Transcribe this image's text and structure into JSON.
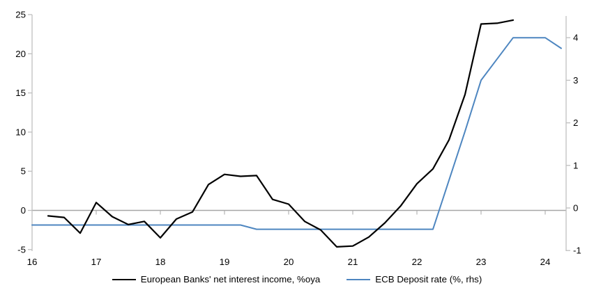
{
  "chart_data": {
    "type": "line",
    "title": "",
    "x_axis": {
      "tick_labels": [
        "16",
        "17",
        "18",
        "19",
        "20",
        "21",
        "22",
        "23",
        "24"
      ],
      "tick_values": [
        16,
        17,
        18,
        19,
        20,
        21,
        22,
        23,
        24
      ],
      "range": [
        16,
        24.34
      ]
    },
    "left_axis": {
      "tick_labels": [
        "25",
        "20",
        "15",
        "10",
        "5",
        "0",
        "-5"
      ],
      "tick_values": [
        25,
        20,
        15,
        10,
        5,
        0,
        -5
      ],
      "range": [
        -5,
        25
      ]
    },
    "right_axis": {
      "tick_labels": [
        "4",
        "3",
        "2",
        "1",
        "0",
        "-1"
      ],
      "tick_values": [
        4,
        3,
        2,
        1,
        0,
        -1
      ],
      "range": [
        -1,
        4.5
      ]
    },
    "grid": false,
    "zero_line": true,
    "legend_position": "bottom-center",
    "colors": {
      "axis_line": "#bfbfbf",
      "zero_line": "#a6a6a6",
      "tick_text": "#000000",
      "background": "#ffffff"
    },
    "series": [
      {
        "name": "European Banks' net interest income, %oya",
        "axis": "left",
        "color": "#000000",
        "width": 2.2,
        "x": [
          16.25,
          16.5,
          16.75,
          17.0,
          17.25,
          17.5,
          17.75,
          18.0,
          18.25,
          18.5,
          18.75,
          19.0,
          19.25,
          19.5,
          19.75,
          20.0,
          20.25,
          20.5,
          20.75,
          21.0,
          21.25,
          21.5,
          21.75,
          22.0,
          22.25,
          22.5,
          22.75,
          23.0,
          23.25,
          23.5
        ],
        "values": [
          -0.7,
          -0.9,
          -2.9,
          1.0,
          -0.8,
          -1.8,
          -1.4,
          -3.5,
          -1.1,
          -0.2,
          3.3,
          4.6,
          4.35,
          4.45,
          1.4,
          0.8,
          -1.4,
          -2.5,
          -4.65,
          -4.55,
          -3.4,
          -1.6,
          0.6,
          3.4,
          5.3,
          9.0,
          14.8,
          23.8,
          23.9,
          24.3
        ]
      },
      {
        "name": "ECB Deposit rate (%, rhs)",
        "axis": "right",
        "color": "#4e86c0",
        "width": 2.0,
        "x": [
          16.0,
          16.25,
          16.5,
          16.75,
          17.0,
          17.25,
          17.5,
          17.75,
          18.0,
          18.25,
          18.5,
          18.75,
          19.0,
          19.25,
          19.5,
          19.75,
          20.0,
          20.25,
          20.5,
          20.75,
          21.0,
          21.25,
          21.5,
          21.75,
          22.0,
          22.25,
          22.5,
          22.75,
          23.0,
          23.25,
          23.5,
          23.75,
          24.0,
          24.25
        ],
        "values": [
          -0.4,
          -0.4,
          -0.4,
          -0.4,
          -0.4,
          -0.4,
          -0.4,
          -0.4,
          -0.4,
          -0.4,
          -0.4,
          -0.4,
          -0.4,
          -0.4,
          -0.5,
          -0.5,
          -0.5,
          -0.5,
          -0.5,
          -0.5,
          -0.5,
          -0.5,
          -0.5,
          -0.5,
          -0.5,
          -0.5,
          0.65,
          1.8,
          3.0,
          3.5,
          4.0,
          4.0,
          4.0,
          3.75
        ]
      }
    ]
  }
}
